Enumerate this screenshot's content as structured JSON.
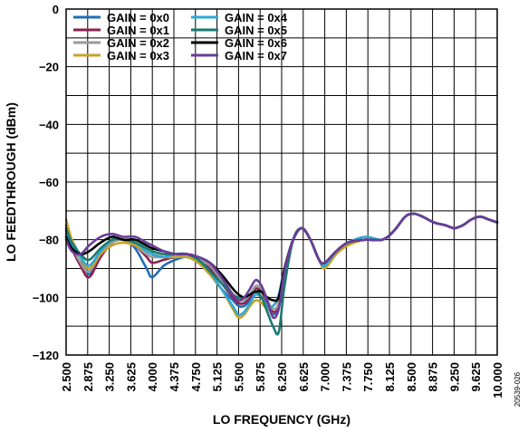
{
  "chart_data": {
    "type": "line",
    "title": "",
    "xlabel": "LO FREQUENCY (GHz)",
    "ylabel": "LO FEEDTHROUGH (dBm)",
    "xlim": [
      2.5,
      10.0
    ],
    "ylim": [
      -120,
      0
    ],
    "x_ticks": [
      "2.500",
      "2.875",
      "3.250",
      "3.625",
      "4.000",
      "4.375",
      "4.750",
      "5.125",
      "5.500",
      "5.875",
      "6.250",
      "6.625",
      "7.000",
      "7.375",
      "7.750",
      "8.125",
      "8.500",
      "8.875",
      "9.250",
      "9.625",
      "10.000"
    ],
    "y_ticks": [
      "0",
      "−20",
      "−40",
      "−60",
      "−80",
      "−100",
      "−120"
    ],
    "y_tick_values": [
      0,
      -20,
      -40,
      -60,
      -80,
      -100,
      -120
    ],
    "grid": true,
    "legend_position": "top-left",
    "figure_id": "20539-026",
    "series": [
      {
        "name": "GAIN = 0x0",
        "color": "#1f6fb5",
        "x": [
          2.5,
          2.6,
          2.75,
          2.9,
          3.1,
          3.3,
          3.5,
          3.7,
          3.9,
          4.0,
          4.2,
          4.4,
          4.6,
          4.8,
          5.0,
          5.2,
          5.4,
          5.5,
          5.6,
          5.7,
          5.8,
          5.9,
          6.0,
          6.1,
          6.2,
          6.3,
          6.45,
          6.6,
          6.75,
          6.9,
          7.0,
          7.2,
          7.4,
          7.7,
          8.0,
          8.2,
          8.4,
          8.55,
          8.7,
          8.9,
          9.1,
          9.25,
          9.4,
          9.55,
          9.7,
          9.85,
          10.0
        ],
        "y": [
          -75,
          -80,
          -86,
          -92,
          -86,
          -81,
          -80,
          -83,
          -90,
          -93,
          -89,
          -87,
          -86,
          -88,
          -92,
          -97,
          -101,
          -103,
          -103,
          -101,
          -99,
          -100,
          -103,
          -106,
          -103,
          -92,
          -80,
          -76,
          -80,
          -87,
          -88,
          -84,
          -81,
          -80,
          -80,
          -77,
          -72,
          -71,
          -72,
          -74,
          -75,
          -76,
          -75,
          -73,
          -72,
          -73,
          -74
        ]
      },
      {
        "name": "GAIN = 0x1",
        "color": "#8b2252",
        "x": [
          2.5,
          2.6,
          2.75,
          2.9,
          3.1,
          3.3,
          3.5,
          3.7,
          3.9,
          4.0,
          4.2,
          4.4,
          4.6,
          4.8,
          5.0,
          5.2,
          5.4,
          5.5,
          5.6,
          5.7,
          5.8,
          5.9,
          6.0,
          6.1,
          6.2,
          6.3,
          6.45,
          6.6,
          6.75,
          6.9,
          7.0,
          7.2,
          7.4,
          7.7,
          8.0,
          8.2,
          8.4,
          8.55,
          8.7,
          8.9,
          9.1,
          9.25,
          9.4,
          9.55,
          9.7,
          9.85,
          10.0
        ],
        "y": [
          -77,
          -83,
          -89,
          -93,
          -86,
          -81,
          -80,
          -82,
          -86,
          -88,
          -87,
          -86,
          -86,
          -87,
          -90,
          -95,
          -100,
          -102,
          -102,
          -100,
          -97,
          -98,
          -102,
          -105,
          -103,
          -92,
          -80,
          -76,
          -80,
          -87,
          -88,
          -84,
          -81,
          -80,
          -80,
          -77,
          -72,
          -71,
          -72,
          -74,
          -75,
          -76,
          -75,
          -73,
          -72,
          -73,
          -74
        ]
      },
      {
        "name": "GAIN = 0x2",
        "color": "#9a9a9a",
        "x": [
          2.5,
          2.6,
          2.75,
          2.9,
          3.1,
          3.3,
          3.5,
          3.7,
          3.9,
          4.0,
          4.2,
          4.4,
          4.6,
          4.8,
          5.0,
          5.2,
          5.4,
          5.5,
          5.6,
          5.7,
          5.8,
          5.9,
          6.0,
          6.1,
          6.2,
          6.3,
          6.45,
          6.6,
          6.75,
          6.9,
          7.0,
          7.2,
          7.4,
          7.7,
          8.0,
          8.2,
          8.4,
          8.55,
          8.7,
          8.9,
          9.1,
          9.25,
          9.4,
          9.55,
          9.7,
          9.85,
          10.0
        ],
        "y": [
          -76,
          -82,
          -88,
          -91,
          -85,
          -81,
          -80,
          -82,
          -85,
          -86,
          -86,
          -86,
          -86,
          -87,
          -89,
          -94,
          -99,
          -101,
          -101,
          -99,
          -96,
          -97,
          -101,
          -104,
          -102,
          -92,
          -80,
          -76,
          -80,
          -87,
          -88,
          -84,
          -81,
          -80,
          -80,
          -77,
          -72,
          -71,
          -72,
          -74,
          -75,
          -76,
          -75,
          -73,
          -72,
          -73,
          -74
        ]
      },
      {
        "name": "GAIN = 0x3",
        "color": "#c9a227",
        "x": [
          2.5,
          2.6,
          2.75,
          2.9,
          3.1,
          3.3,
          3.5,
          3.7,
          3.9,
          4.0,
          4.2,
          4.4,
          4.6,
          4.8,
          5.0,
          5.2,
          5.4,
          5.5,
          5.6,
          5.7,
          5.8,
          5.9,
          6.0,
          6.1,
          6.2,
          6.3,
          6.45,
          6.6,
          6.75,
          6.9,
          7.0,
          7.2,
          7.4,
          7.7,
          8.0,
          8.2,
          8.4,
          8.55,
          8.7,
          8.9,
          9.1,
          9.25,
          9.4,
          9.55,
          9.7,
          9.85,
          10.0
        ],
        "y": [
          -73,
          -80,
          -86,
          -90,
          -85,
          -82,
          -81,
          -82,
          -84,
          -85,
          -86,
          -86,
          -86,
          -88,
          -92,
          -97,
          -104,
          -107,
          -106,
          -103,
          -101,
          -102,
          -104,
          -103,
          -100,
          -91,
          -80,
          -76,
          -80,
          -87,
          -90,
          -85,
          -82,
          -80,
          -80,
          -77,
          -72,
          -71,
          -72,
          -74,
          -75,
          -76,
          -75,
          -73,
          -72,
          -73,
          -74
        ]
      },
      {
        "name": "GAIN = 0x4",
        "color": "#2ea8d8",
        "x": [
          2.5,
          2.6,
          2.75,
          2.9,
          3.1,
          3.3,
          3.5,
          3.7,
          3.9,
          4.0,
          4.2,
          4.4,
          4.6,
          4.8,
          5.0,
          5.2,
          5.4,
          5.5,
          5.6,
          5.7,
          5.8,
          5.9,
          6.0,
          6.1,
          6.2,
          6.3,
          6.45,
          6.6,
          6.75,
          6.9,
          7.0,
          7.2,
          7.4,
          7.7,
          8.0,
          8.2,
          8.4,
          8.55,
          8.7,
          8.9,
          9.1,
          9.25,
          9.4,
          9.55,
          9.7,
          9.85,
          10.0
        ],
        "y": [
          -78,
          -82,
          -86,
          -89,
          -84,
          -80,
          -80,
          -81,
          -84,
          -85,
          -86,
          -85,
          -85,
          -87,
          -91,
          -97,
          -103,
          -106,
          -105,
          -102,
          -99,
          -100,
          -103,
          -103,
          -99,
          -90,
          -80,
          -76,
          -80,
          -87,
          -89,
          -84,
          -81,
          -79,
          -80,
          -77,
          -72,
          -71,
          -72,
          -74,
          -75,
          -76,
          -75,
          -73,
          -72,
          -73,
          -74
        ]
      },
      {
        "name": "GAIN = 0x5",
        "color": "#1a7a70",
        "x": [
          2.5,
          2.6,
          2.75,
          2.9,
          3.1,
          3.3,
          3.5,
          3.7,
          3.9,
          4.0,
          4.2,
          4.4,
          4.6,
          4.8,
          5.0,
          5.2,
          5.4,
          5.5,
          5.6,
          5.7,
          5.8,
          5.9,
          6.0,
          6.1,
          6.2,
          6.3,
          6.45,
          6.6,
          6.75,
          6.9,
          7.0,
          7.2,
          7.4,
          7.7,
          8.0,
          8.2,
          8.4,
          8.55,
          8.7,
          8.9,
          9.1,
          9.25,
          9.4,
          9.55,
          9.7,
          9.85,
          10.0
        ],
        "y": [
          -76,
          -81,
          -85,
          -87,
          -83,
          -80,
          -80,
          -81,
          -83,
          -84,
          -85,
          -85,
          -85,
          -87,
          -91,
          -95,
          -99,
          -100,
          -100,
          -99,
          -98,
          -100,
          -105,
          -110,
          -112,
          -96,
          -80,
          -76,
          -80,
          -87,
          -88,
          -84,
          -81,
          -80,
          -80,
          -77,
          -72,
          -71,
          -72,
          -74,
          -75,
          -76,
          -75,
          -73,
          -72,
          -73,
          -74
        ]
      },
      {
        "name": "GAIN = 0x6",
        "color": "#000000",
        "x": [
          2.5,
          2.6,
          2.75,
          2.9,
          3.1,
          3.3,
          3.5,
          3.7,
          3.9,
          4.0,
          4.2,
          4.4,
          4.6,
          4.8,
          5.0,
          5.2,
          5.4,
          5.5,
          5.6,
          5.7,
          5.8,
          5.9,
          6.0,
          6.1,
          6.2,
          6.3,
          6.45,
          6.6,
          6.75,
          6.9,
          7.0,
          7.2,
          7.4,
          7.7,
          8.0,
          8.2,
          8.4,
          8.55,
          8.7,
          8.9,
          9.1,
          9.25,
          9.4,
          9.55,
          9.7,
          9.85,
          10.0
        ],
        "y": [
          -79,
          -83,
          -85,
          -84,
          -81,
          -79,
          -80,
          -80,
          -82,
          -83,
          -84,
          -85,
          -85,
          -86,
          -88,
          -92,
          -97,
          -99,
          -100,
          -99,
          -98,
          -98,
          -100,
          -101,
          -100,
          -90,
          -80,
          -76,
          -80,
          -87,
          -88,
          -84,
          -81,
          -80,
          -80,
          -77,
          -72,
          -71,
          -72,
          -74,
          -75,
          -76,
          -75,
          -73,
          -72,
          -73,
          -74
        ]
      },
      {
        "name": "GAIN = 0x7",
        "color": "#6a3d9a",
        "x": [
          2.5,
          2.6,
          2.75,
          2.9,
          3.1,
          3.3,
          3.5,
          3.7,
          3.9,
          4.0,
          4.2,
          4.4,
          4.6,
          4.8,
          5.0,
          5.2,
          5.4,
          5.5,
          5.6,
          5.7,
          5.8,
          5.9,
          6.0,
          6.1,
          6.2,
          6.3,
          6.45,
          6.6,
          6.75,
          6.9,
          7.0,
          7.2,
          7.4,
          7.7,
          8.0,
          8.2,
          8.4,
          8.55,
          8.7,
          8.9,
          9.1,
          9.25,
          9.4,
          9.55,
          9.7,
          9.85,
          10.0
        ],
        "y": [
          -80,
          -84,
          -85,
          -82,
          -79,
          -78,
          -79,
          -79,
          -81,
          -82,
          -84,
          -85,
          -85,
          -86,
          -88,
          -93,
          -99,
          -101,
          -100,
          -97,
          -94,
          -96,
          -101,
          -107,
          -104,
          -91,
          -80,
          -76,
          -80,
          -87,
          -88,
          -84,
          -81,
          -80,
          -80,
          -77,
          -72,
          -71,
          -72,
          -74,
          -75,
          -76,
          -75,
          -73,
          -72,
          -73,
          -74
        ]
      }
    ]
  }
}
